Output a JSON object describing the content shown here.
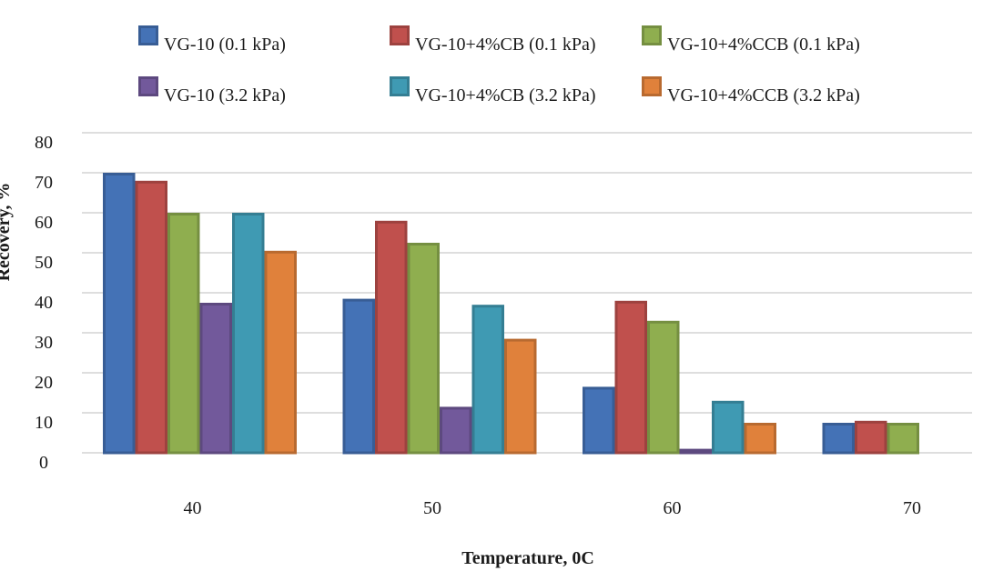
{
  "chart_data": {
    "type": "bar",
    "title": "",
    "xlabel": "Temperature, 0C",
    "ylabel": "Recovery, %",
    "categories": [
      "40",
      "50",
      "60",
      "70"
    ],
    "ylim": [
      0,
      80
    ],
    "yticks": [
      "0",
      "10",
      "20",
      "30",
      "40",
      "50",
      "60",
      "70",
      "80"
    ],
    "grid": true,
    "legend_position": "top",
    "series": [
      {
        "name": "VG-10 (0.1 kPa)",
        "color": "#4472b6",
        "values": [
          70,
          38.5,
          16.5,
          7.5
        ]
      },
      {
        "name": "VG-10+4%CB (0.1 kPa)",
        "color": "#c0504d",
        "values": [
          68,
          58,
          38,
          8
        ]
      },
      {
        "name": "VG-10+4%CCB (0.1 kPa)",
        "color": "#8fae4f",
        "values": [
          60,
          52.5,
          33,
          7.5
        ]
      },
      {
        "name": "VG-10 (3.2 kPa)",
        "color": "#72599b",
        "values": [
          37.5,
          11.5,
          1,
          0
        ]
      },
      {
        "name": "VG-10+4%CB (3.2 kPa)",
        "color": "#3f9ab3",
        "values": [
          60,
          37,
          13,
          0
        ]
      },
      {
        "name": "VG-10+4%CCB (3.2 kPa)",
        "color": "#e0813b",
        "values": [
          50.5,
          28.5,
          7.5,
          0
        ]
      }
    ]
  }
}
